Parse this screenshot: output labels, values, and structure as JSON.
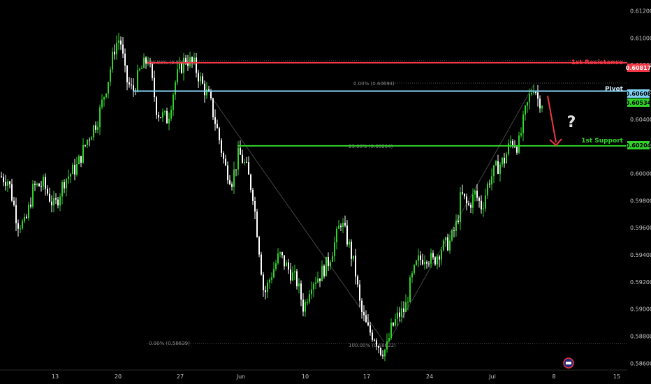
{
  "chart_data": {
    "type": "candlestick",
    "ylim": [
      0.5855,
      0.6128
    ],
    "y_ticks": [
      "0.61200",
      "0.61000",
      "0.60800",
      "0.60600",
      "0.60400",
      "0.60200",
      "0.60000",
      "0.59800",
      "0.59600",
      "0.59400",
      "0.59200",
      "0.59000",
      "0.58800",
      "0.58600"
    ],
    "x_ticks": [
      "13",
      "20",
      "27",
      "Jun",
      "10",
      "17",
      "24",
      "Jul",
      "8",
      "15"
    ],
    "levels": [
      {
        "label": "1st Resistance",
        "value": 0.60817,
        "price_tag": "0.60817",
        "color": "#f23645"
      },
      {
        "label": "Pivot",
        "value": 0.60608,
        "price_tag": "0.60608",
        "color": "#7fd3f5"
      },
      {
        "label": "1st Support",
        "value": 0.60204,
        "price_tag": "0.60204",
        "color": "#31d22b"
      }
    ],
    "current_price_tag": "0.60534",
    "fib_labels": [
      "100.00% (0.60862)",
      "0.00% (0.58639)",
      "0.00% (0.60693)",
      "23.60% (0.60204)",
      "100.00% (0.58622)"
    ],
    "annotation": "?",
    "candles": []
  },
  "colors": {
    "up": "#31d22b",
    "down": "#ffffff",
    "background": "#000000"
  }
}
